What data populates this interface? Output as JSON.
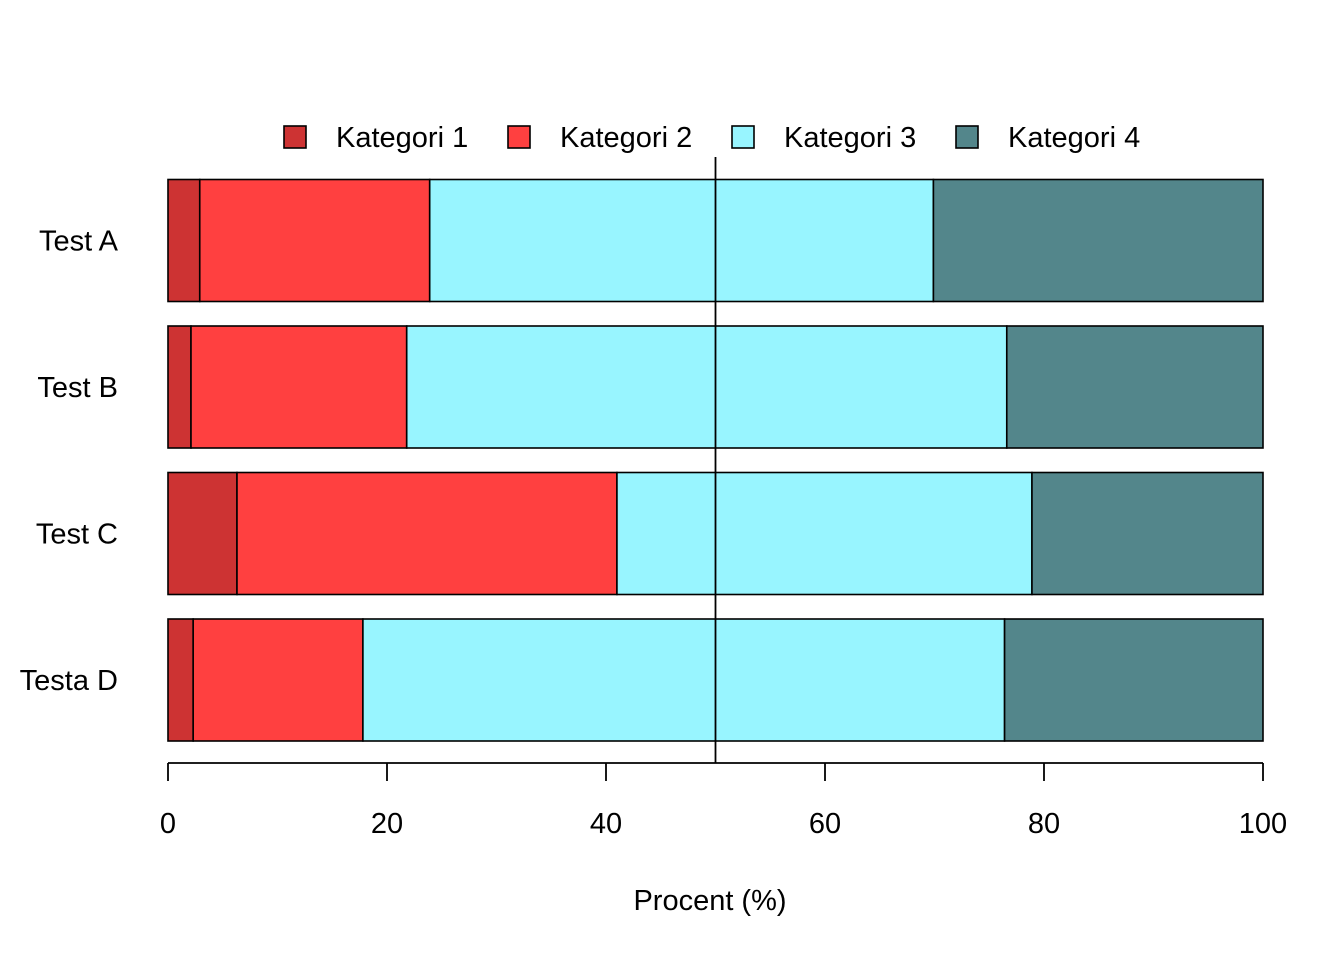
{
  "chart_data": {
    "type": "bar",
    "orientation": "horizontal",
    "stacked": true,
    "title": "",
    "xlabel": "Procent (%)",
    "ylabel": "",
    "xlim": [
      0,
      100
    ],
    "x_ticks": [
      0,
      20,
      40,
      60,
      80,
      100
    ],
    "reference_line": 50,
    "grid": false,
    "legend_position": "top",
    "categories": [
      "Test A",
      "Test B",
      "Test C",
      "Testa D"
    ],
    "series": [
      {
        "name": "Kategori 1",
        "color": "#CD3333",
        "values": [
          2.9,
          2.1,
          6.3,
          2.3
        ]
      },
      {
        "name": "Kategori 2",
        "color": "#FF4040",
        "values": [
          21.0,
          19.7,
          34.7,
          15.5
        ]
      },
      {
        "name": "Kategori 3",
        "color": "#98F5FF",
        "values": [
          46.0,
          54.8,
          37.9,
          58.6
        ]
      },
      {
        "name": "Kategori 4",
        "color": "#53868B",
        "values": [
          30.1,
          23.4,
          21.1,
          23.6
        ]
      }
    ]
  }
}
